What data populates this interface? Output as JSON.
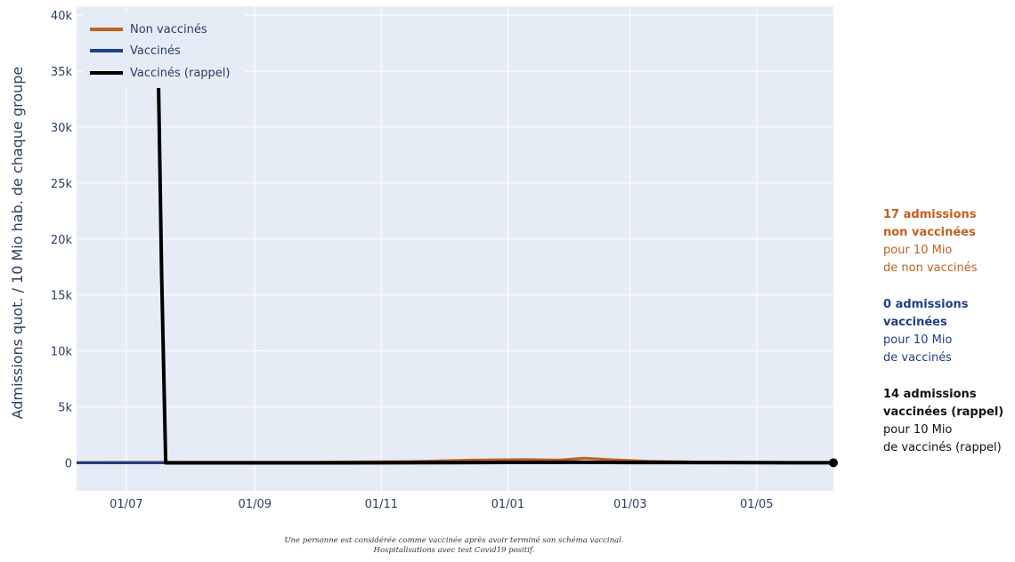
{
  "colors": {
    "non_vaccines": "#c0611f",
    "vaccines": "#1f3f86",
    "rappel": "#000000",
    "plot_bg": "#e5ecf6",
    "grid": "#ffffff",
    "text": "#2a3f5f"
  },
  "chart_data": {
    "type": "line",
    "xlabel": "",
    "ylabel": "Admissions quot. / 10 Mio hab. de chaque groupe",
    "x_range": [
      "2021-06-07",
      "2022-06-07"
    ],
    "ylim": [
      -2500,
      40800
    ],
    "x_ticks": [
      {
        "date": "2021-07-01",
        "label": "01/07"
      },
      {
        "date": "2021-09-01",
        "label": "01/09"
      },
      {
        "date": "2021-11-01",
        "label": "01/11"
      },
      {
        "date": "2022-01-01",
        "label": "01/01"
      },
      {
        "date": "2022-03-01",
        "label": "01/03"
      },
      {
        "date": "2022-05-01",
        "label": "01/05"
      }
    ],
    "y_ticks": [
      {
        "value": 0,
        "label": "0"
      },
      {
        "value": 5000,
        "label": "5k"
      },
      {
        "value": 10000,
        "label": "10k"
      },
      {
        "value": 15000,
        "label": "15k"
      },
      {
        "value": 20000,
        "label": "20k"
      },
      {
        "value": 25000,
        "label": "25k"
      },
      {
        "value": 30000,
        "label": "30k"
      },
      {
        "value": 35000,
        "label": "35k"
      },
      {
        "value": 40000,
        "label": "40k"
      }
    ],
    "grid": true,
    "legend_position": "top-left",
    "series": [
      {
        "name": "Non vaccinés",
        "color": "#c0611f",
        "x": [
          "2021-06-07",
          "2021-08-01",
          "2021-10-01",
          "2021-11-15",
          "2021-12-15",
          "2022-01-10",
          "2022-01-25",
          "2022-02-07",
          "2022-02-20",
          "2022-03-10",
          "2022-04-01",
          "2022-05-01",
          "2022-06-07"
        ],
        "y": [
          40,
          60,
          70,
          120,
          250,
          300,
          250,
          420,
          280,
          150,
          80,
          40,
          17
        ]
      },
      {
        "name": "Vaccinés",
        "color": "#1f3f86",
        "x": [
          "2021-06-07",
          "2021-07-20",
          "2021-09-01",
          "2021-11-01",
          "2022-01-01",
          "2022-03-01",
          "2022-05-01",
          "2022-06-07"
        ],
        "y": [
          0,
          0,
          5,
          15,
          20,
          15,
          5,
          0
        ]
      },
      {
        "name": "Vaccinés (rappel)",
        "color": "#000000",
        "x": [
          "2021-07-16",
          "2021-07-18",
          "2021-07-20",
          "2021-08-01",
          "2021-10-01",
          "2021-12-01",
          "2022-01-01",
          "2022-02-01",
          "2022-03-01",
          "2022-05-01",
          "2022-06-07"
        ],
        "y": [
          40000,
          17000,
          0,
          0,
          0,
          20,
          40,
          60,
          35,
          15,
          14
        ]
      }
    ]
  },
  "annotations": [
    {
      "bold1": "17 admissions",
      "bold2": "non vaccinées",
      "line1": "pour 10 Mio",
      "line2": "de non vaccinés"
    },
    {
      "bold1": "0 admissions",
      "bold2": "vaccinées",
      "line1": "pour 10 Mio",
      "line2": "de vaccinés"
    },
    {
      "bold1": "14 admissions",
      "bold2": "vaccinées (rappel)",
      "line1": "pour 10 Mio",
      "line2": "de vaccinés (rappel)"
    }
  ],
  "footnote": {
    "line1": "Une personne est considérée comme vaccinée après avoir terminé son schéma vaccinal.",
    "line2": "Hospitalisations avec test Covid19 positif."
  }
}
